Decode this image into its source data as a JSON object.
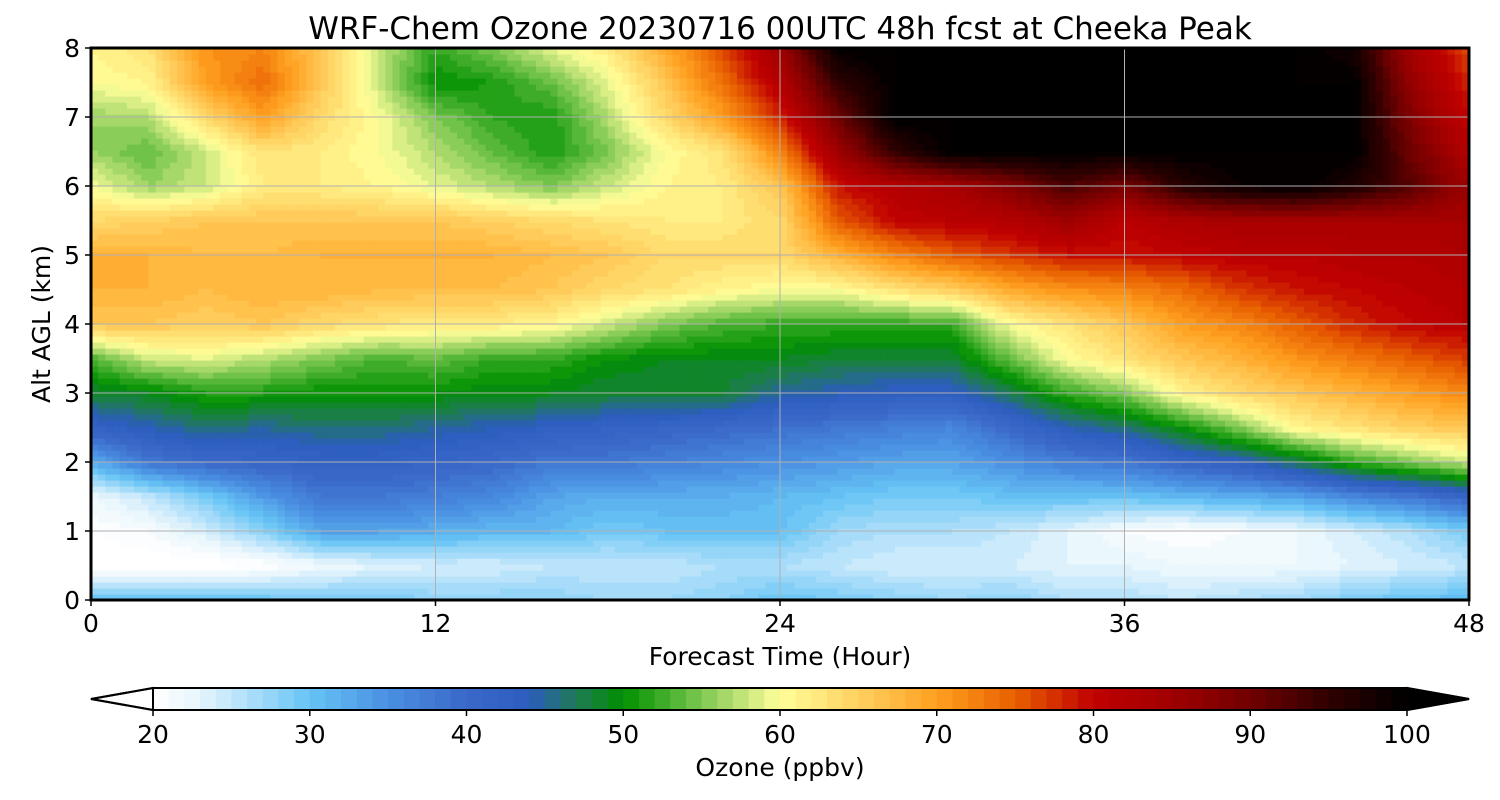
{
  "chart_data": {
    "type": "heatmap",
    "title": "WRF-Chem Ozone  20230716 00UTC 48h fcst at Cheeka Peak",
    "xlabel": "Forecast Time (Hour)",
    "ylabel": "Alt AGL (km)",
    "xlim": [
      0,
      48
    ],
    "ylim": [
      0,
      8
    ],
    "x_ticks": [
      0,
      12,
      24,
      36,
      48
    ],
    "y_ticks": [
      0,
      1,
      2,
      3,
      4,
      5,
      6,
      7,
      8
    ],
    "grid": true,
    "colorbar": {
      "label": "Ozone  (ppbv)",
      "orientation": "horizontal",
      "position": "bottom",
      "min": 20,
      "max": 100,
      "ticks": [
        20,
        30,
        40,
        50,
        60,
        70,
        80,
        90,
        100
      ],
      "extend": "both",
      "level_step": 1,
      "colors": [
        {
          "v": 20,
          "c": "#ffffff"
        },
        {
          "v": 23,
          "c": "#e6f5fd"
        },
        {
          "v": 30,
          "c": "#66c3f5"
        },
        {
          "v": 35,
          "c": "#4a90e2"
        },
        {
          "v": 40,
          "c": "#3a68c8"
        },
        {
          "v": 44,
          "c": "#2b5cbf"
        },
        {
          "v": 47,
          "c": "#1f7a55"
        },
        {
          "v": 50,
          "c": "#009000"
        },
        {
          "v": 55,
          "c": "#7cc850"
        },
        {
          "v": 58,
          "c": "#cde880"
        },
        {
          "v": 60,
          "c": "#ffff99"
        },
        {
          "v": 65,
          "c": "#ffd060"
        },
        {
          "v": 70,
          "c": "#ffa020"
        },
        {
          "v": 75,
          "c": "#e86000"
        },
        {
          "v": 80,
          "c": "#c00000"
        },
        {
          "v": 85,
          "c": "#a00000"
        },
        {
          "v": 90,
          "c": "#700000"
        },
        {
          "v": 95,
          "c": "#300000"
        },
        {
          "v": 100,
          "c": "#000000"
        }
      ]
    },
    "times": [
      0,
      2,
      4,
      6,
      8,
      10,
      12,
      14,
      16,
      18,
      20,
      22,
      24,
      26,
      28,
      30,
      32,
      34,
      36,
      38,
      40,
      42,
      44,
      46,
      48
    ],
    "heights_km": [
      0,
      0.5,
      1,
      1.5,
      2,
      2.5,
      3,
      3.5,
      4,
      4.5,
      5,
      5.5,
      6,
      6.5,
      7,
      7.5,
      8
    ],
    "ozone_ppbv": [
      [
        31,
        30,
        31,
        30,
        29,
        29,
        28,
        28,
        28,
        27,
        27,
        28,
        30,
        29,
        28,
        27,
        28,
        26,
        26,
        25,
        26,
        27,
        29,
        30,
        31
      ],
      [
        19,
        19,
        19,
        20,
        22,
        23,
        24,
        24,
        25,
        25,
        25,
        26,
        26,
        25,
        24,
        24,
        24,
        23,
        23,
        22,
        22,
        22,
        23,
        24,
        25
      ],
      [
        20,
        21,
        24,
        28,
        33,
        33,
        32,
        31,
        31,
        29,
        30,
        30,
        30,
        27,
        26,
        26,
        25,
        23,
        21,
        20,
        21,
        22,
        24,
        26,
        29
      ],
      [
        22,
        25,
        29,
        34,
        38,
        38,
        37,
        36,
        33,
        32,
        32,
        32,
        31,
        30,
        29,
        29,
        30,
        30,
        30,
        31,
        32,
        33,
        36,
        38,
        41
      ],
      [
        32,
        38,
        40,
        41,
        42,
        42,
        41,
        40,
        38,
        38,
        37,
        36,
        35,
        34,
        33,
        33,
        35,
        37,
        38,
        41,
        43,
        47,
        52,
        55,
        58
      ],
      [
        42,
        44,
        46,
        45,
        46,
        46,
        45,
        44,
        43,
        42,
        41,
        40,
        39,
        38,
        37,
        36,
        40,
        44,
        46,
        50,
        55,
        61,
        63,
        65,
        66
      ],
      [
        48,
        49,
        51,
        51,
        50,
        50,
        50,
        49,
        49,
        48,
        48,
        48,
        45,
        44,
        43,
        43,
        47,
        52,
        55,
        61,
        64,
        66,
        68,
        70,
        72
      ],
      [
        53,
        58,
        59,
        57,
        55,
        53,
        54,
        52,
        52,
        50,
        49,
        49,
        49,
        48,
        48,
        48,
        54,
        60,
        63,
        66,
        68,
        71,
        73,
        75,
        77
      ],
      [
        66,
        66,
        65,
        66,
        64,
        63,
        62,
        62,
        61,
        58,
        55,
        53,
        52,
        52,
        52,
        52,
        60,
        63,
        66,
        70,
        72,
        75,
        78,
        80,
        81
      ],
      [
        68,
        68,
        67,
        68,
        68,
        67,
        67,
        67,
        66,
        64,
        63,
        61,
        60,
        60,
        63,
        65,
        69,
        71,
        72,
        74,
        77,
        79,
        80,
        81,
        82
      ],
      [
        68,
        68,
        67,
        67,
        68,
        68,
        68,
        68,
        67,
        66,
        64,
        64,
        64,
        68,
        72,
        75,
        77,
        79,
        79,
        80,
        81,
        81,
        82,
        82,
        83
      ],
      [
        64,
        65,
        66,
        66,
        66,
        66,
        66,
        65,
        64,
        63,
        62,
        62,
        64,
        75,
        80,
        81,
        82,
        85,
        81,
        83,
        84,
        84,
        84,
        84,
        84
      ],
      [
        60,
        56,
        58,
        62,
        62,
        61,
        59,
        57,
        55,
        58,
        61,
        62,
        66,
        79,
        82,
        84,
        88,
        93,
        89,
        96,
        99,
        100,
        97,
        92,
        85
      ],
      [
        56,
        54,
        58,
        63,
        62,
        60,
        57,
        54,
        51,
        55,
        60,
        63,
        72,
        85,
        95,
        100,
        100,
        100,
        100,
        100,
        100,
        100,
        100,
        90,
        82
      ],
      [
        56,
        57,
        64,
        70,
        64,
        60,
        55,
        52,
        51,
        57,
        64,
        70,
        78,
        90,
        100,
        100,
        100,
        100,
        100,
        100,
        100,
        100,
        100,
        88,
        80
      ],
      [
        60,
        61,
        70,
        74,
        66,
        58,
        50,
        51,
        54,
        59,
        66,
        74,
        82,
        95,
        100,
        100,
        100,
        100,
        100,
        100,
        100,
        100,
        100,
        86,
        78
      ],
      [
        61,
        63,
        71,
        72,
        66,
        58,
        52,
        55,
        59,
        62,
        69,
        76,
        85,
        100,
        100,
        100,
        100,
        100,
        100,
        100,
        100,
        100,
        98,
        84,
        76
      ]
    ]
  }
}
